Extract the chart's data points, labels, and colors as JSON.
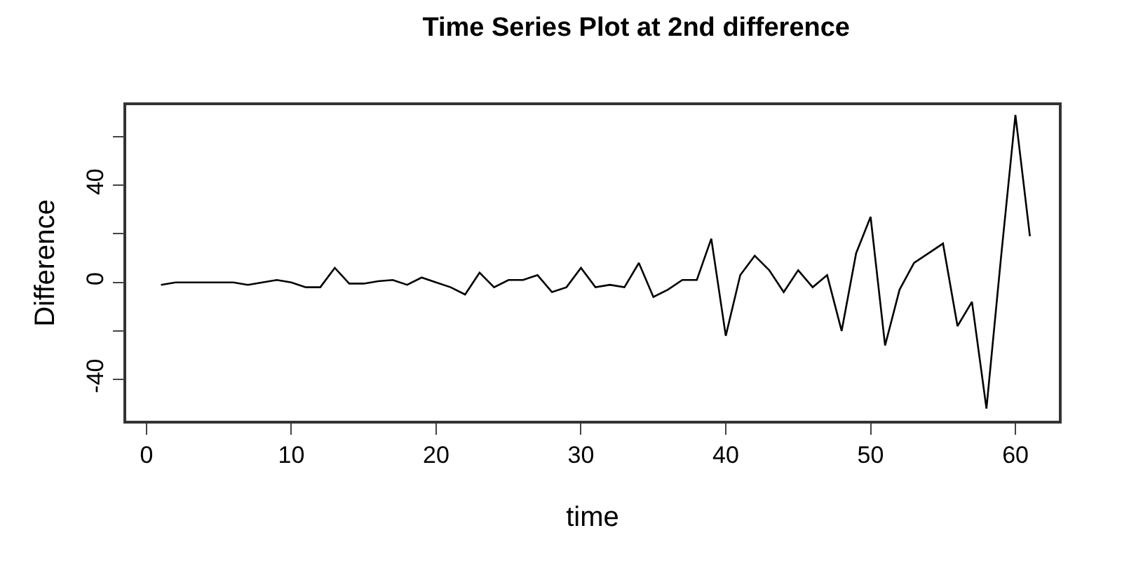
{
  "chart_data": {
    "type": "line",
    "title": "Time Series Plot at 2nd difference",
    "xlabel": "time",
    "ylabel": "Difference",
    "x": [
      1,
      2,
      3,
      4,
      5,
      6,
      7,
      8,
      9,
      10,
      11,
      12,
      13,
      14,
      15,
      16,
      17,
      18,
      19,
      20,
      21,
      22,
      23,
      24,
      25,
      26,
      27,
      28,
      29,
      30,
      31,
      32,
      33,
      34,
      35,
      36,
      37,
      38,
      39,
      40,
      41,
      42,
      43,
      44,
      45,
      46,
      47,
      48,
      49,
      50,
      51,
      52,
      53,
      54,
      55,
      56,
      57,
      58,
      59,
      60,
      61
    ],
    "series": [
      {
        "color": "#000000",
        "values": [
          -1,
          0,
          0,
          0,
          0,
          0,
          -1,
          0,
          1,
          0,
          -2,
          -2,
          6,
          -0.5,
          -0.5,
          0.5,
          1,
          -1,
          2,
          0,
          -2,
          -5,
          4,
          -2,
          1,
          1,
          3,
          -4,
          -2,
          6,
          -2,
          -1,
          -2,
          8,
          -6,
          -3,
          1,
          1,
          18,
          -22,
          3,
          11,
          5,
          -4,
          5,
          -2,
          3,
          -20,
          12,
          27,
          -26,
          -3,
          8,
          12,
          16,
          -18,
          -8,
          -52,
          10,
          69,
          19
        ]
      }
    ],
    "xlim": [
      -1.4,
      63
    ],
    "xticks": [
      0,
      10,
      20,
      30,
      40,
      50,
      60
    ],
    "ylim": [
      -57,
      73
    ],
    "yticks": [
      {
        "value": -40,
        "label": "-40"
      },
      {
        "value": -20,
        "label": null
      },
      0,
      {
        "value": 20,
        "label": null
      },
      40,
      {
        "value": 60,
        "label": null
      }
    ],
    "legend": false,
    "marker": "none",
    "line_style": "solid"
  }
}
